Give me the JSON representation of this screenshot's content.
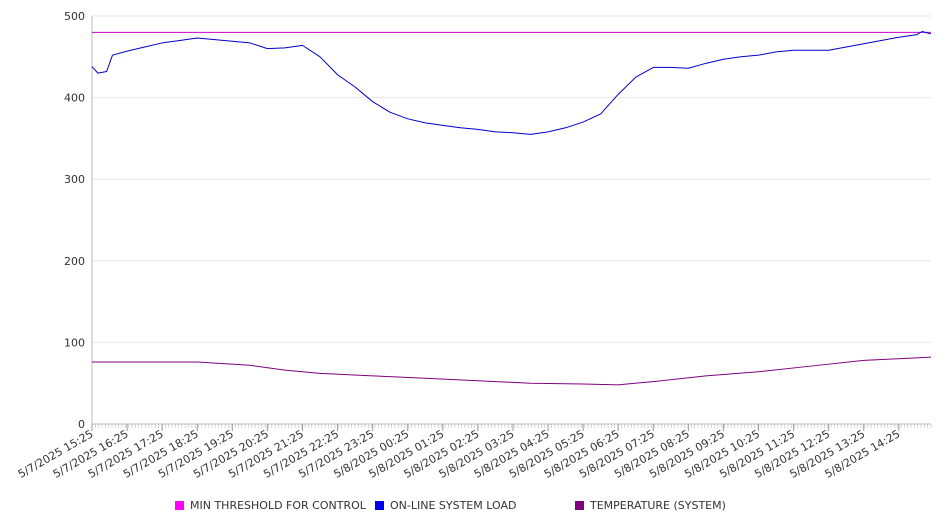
{
  "chart_data": {
    "type": "line",
    "title": "",
    "xlabel": "",
    "ylabel": "",
    "ylim": [
      0,
      500
    ],
    "yticks": [
      0,
      100,
      200,
      300,
      400,
      500
    ],
    "grid": true,
    "legend_placement": "bottom",
    "x_tick_labels": [
      "5/7/2025 15:25",
      "5/7/2025 16:25",
      "5/7/2025 17:25",
      "5/7/2025 18:25",
      "5/7/2025 19:25",
      "5/7/2025 20:25",
      "5/7/2025 21:25",
      "5/7/2025 22:25",
      "5/7/2025 23:25",
      "5/8/2025 00:25",
      "5/8/2025 01:25",
      "5/8/2025 02:25",
      "5/8/2025 03:25",
      "5/8/2025 04:25",
      "5/8/2025 05:25",
      "5/8/2025 06:25",
      "5/8/2025 07:25",
      "5/8/2025 08:25",
      "5/8/2025 09:25",
      "5/8/2025 10:25",
      "5/8/2025 11:25",
      "5/8/2025 12:25",
      "5/8/2025 13:25",
      "5/8/2025 14:25"
    ],
    "x_range": [
      "5/7/2025 15:25",
      "5/8/2025 15:20"
    ],
    "series": [
      {
        "name": "MIN THRESHOLD FOR CONTROL",
        "color": "#cc00cc",
        "x": [
          "5/7/2025 15:25",
          "5/8/2025 15:20"
        ],
        "values": [
          480,
          480
        ]
      },
      {
        "name": "ON-LINE SYSTEM LOAD",
        "color": "#0000cc",
        "x": [
          "5/7/2025 15:25",
          "5/7/2025 15:35",
          "5/7/2025 15:50",
          "5/7/2025 16:00",
          "5/7/2025 16:25",
          "5/7/2025 16:55",
          "5/7/2025 17:25",
          "5/7/2025 17:55",
          "5/7/2025 18:25",
          "5/7/2025 18:55",
          "5/7/2025 19:25",
          "5/7/2025 19:55",
          "5/7/2025 20:25",
          "5/7/2025 20:55",
          "5/7/2025 21:25",
          "5/7/2025 21:55",
          "5/7/2025 22:25",
          "5/7/2025 22:55",
          "5/7/2025 23:25",
          "5/7/2025 23:55",
          "5/8/2025 00:25",
          "5/8/2025 00:55",
          "5/8/2025 01:25",
          "5/8/2025 01:55",
          "5/8/2025 02:25",
          "5/8/2025 02:55",
          "5/8/2025 03:25",
          "5/8/2025 03:55",
          "5/8/2025 04:25",
          "5/8/2025 04:55",
          "5/8/2025 05:25",
          "5/8/2025 05:55",
          "5/8/2025 06:25",
          "5/8/2025 06:55",
          "5/8/2025 07:25",
          "5/8/2025 07:55",
          "5/8/2025 08:25",
          "5/8/2025 08:55",
          "5/8/2025 09:25",
          "5/8/2025 09:55",
          "5/8/2025 10:25",
          "5/8/2025 10:55",
          "5/8/2025 11:25",
          "5/8/2025 11:55",
          "5/8/2025 12:25",
          "5/8/2025 12:55",
          "5/8/2025 13:25",
          "5/8/2025 13:55",
          "5/8/2025 14:25",
          "5/8/2025 14:55",
          "5/8/2025 15:05",
          "5/8/2025 15:20"
        ],
        "values": [
          438,
          430,
          432,
          452,
          457,
          462,
          467,
          470,
          473,
          471,
          469,
          467,
          460,
          461,
          464,
          450,
          428,
          413,
          395,
          382,
          374,
          369,
          366,
          363,
          361,
          358,
          357,
          355,
          358,
          363,
          370,
          380,
          404,
          425,
          437,
          437,
          436,
          442,
          447,
          450,
          452,
          456,
          458,
          458,
          458,
          462,
          466,
          470,
          474,
          477,
          481,
          478
        ]
      },
      {
        "name": "TEMPERATURE (SYSTEM)",
        "color": "#800080",
        "x": [
          "5/7/2025 15:25",
          "5/7/2025 18:25",
          "5/7/2025 19:55",
          "5/7/2025 20:55",
          "5/7/2025 21:55",
          "5/7/2025 23:25",
          "5/8/2025 00:55",
          "5/8/2025 02:25",
          "5/8/2025 03:55",
          "5/8/2025 05:25",
          "5/8/2025 06:25",
          "5/8/2025 07:25",
          "5/8/2025 08:55",
          "5/8/2025 10:25",
          "5/8/2025 11:55",
          "5/8/2025 13:25",
          "5/8/2025 14:25",
          "5/8/2025 15:20"
        ],
        "values": [
          76,
          76,
          72,
          66,
          62,
          59,
          56,
          53,
          50,
          49,
          48,
          52,
          59,
          64,
          71,
          78,
          80,
          82
        ]
      }
    ]
  },
  "legend": [
    {
      "label": "MIN THRESHOLD FOR CONTROL",
      "color": "#ff00ff"
    },
    {
      "label": "ON-LINE SYSTEM LOAD",
      "color": "#0000ee"
    },
    {
      "label": "TEMPERATURE (SYSTEM)",
      "color": "#800080"
    }
  ]
}
